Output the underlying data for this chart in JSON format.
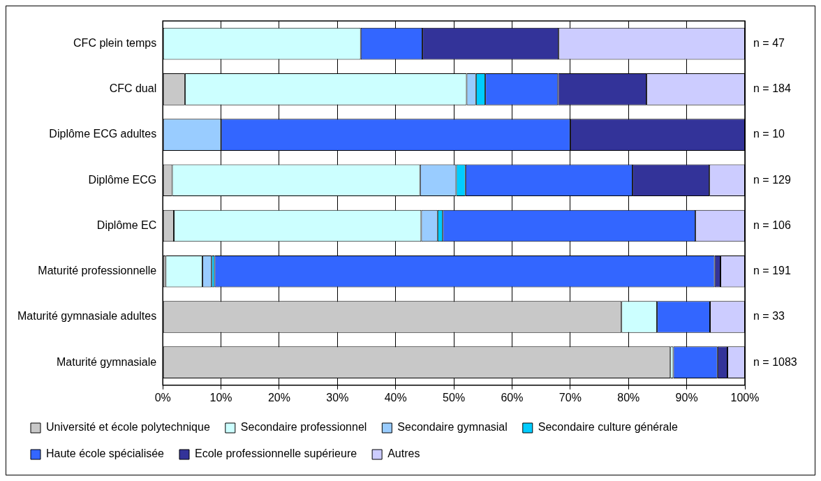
{
  "chart_data": {
    "type": "bar",
    "orientation": "horizontal",
    "stacked": true,
    "categories": [
      "CFC plein temps",
      "CFC dual",
      "Diplôme ECG adultes",
      "Diplôme ECG",
      "Diplôme EC",
      "Maturité professionnelle",
      "Maturité gymnasiale adultes",
      "Maturité gymnasiale"
    ],
    "series": [
      {
        "name": "Université et école polytechnique",
        "color": "#c8c8c8",
        "values": [
          0,
          3.8,
          0,
          1.6,
          1.9,
          0.5,
          78.8,
          87.2
        ]
      },
      {
        "name": "Secondaire professionnel",
        "color": "#ccffff",
        "values": [
          34.0,
          48.4,
          0,
          42.6,
          42.5,
          6.3,
          6.1,
          0.5
        ]
      },
      {
        "name": "Secondaire gymnasial",
        "color": "#99ccff",
        "values": [
          0,
          1.6,
          10,
          6.2,
          2.8,
          1.6,
          0,
          0
        ]
      },
      {
        "name": "Secondaire culture générale",
        "color": "#00ccff",
        "values": [
          0,
          1.6,
          0,
          1.6,
          0.9,
          0.5,
          0,
          0
        ]
      },
      {
        "name": "Haute école spécialisée",
        "color": "#3366ff",
        "values": [
          10.6,
          12.5,
          60,
          28.7,
          43.4,
          85.9,
          9.1,
          7.6
        ]
      },
      {
        "name": "Ecole professionnelle supérieure",
        "color": "#333399",
        "values": [
          23.4,
          15.2,
          30,
          13.2,
          0,
          1.0,
          0,
          1.7
        ]
      },
      {
        "name": "Autres",
        "color": "#ccccff",
        "values": [
          32.0,
          16.9,
          0,
          6.1,
          8.5,
          4.2,
          6.0,
          3.0
        ]
      }
    ],
    "xlim": [
      0,
      100
    ],
    "xticks": [
      {
        "value": 0,
        "label": "0%"
      },
      {
        "value": 10,
        "label": "10%"
      },
      {
        "value": 20,
        "label": "20%"
      },
      {
        "value": 30,
        "label": "30%"
      },
      {
        "value": 40,
        "label": "40%"
      },
      {
        "value": 50,
        "label": "50%"
      },
      {
        "value": 60,
        "label": "60%"
      },
      {
        "value": 70,
        "label": "70%"
      },
      {
        "value": 80,
        "label": "80%"
      },
      {
        "value": 90,
        "label": "90%"
      },
      {
        "value": 100,
        "label": "100%"
      }
    ],
    "grid": "x",
    "legend": "bottom",
    "annotations": [
      "n = 47",
      "n = 184",
      "n = 10",
      "n = 129",
      "n = 106",
      "n = 191",
      "n = 33",
      "n = 1083"
    ]
  }
}
